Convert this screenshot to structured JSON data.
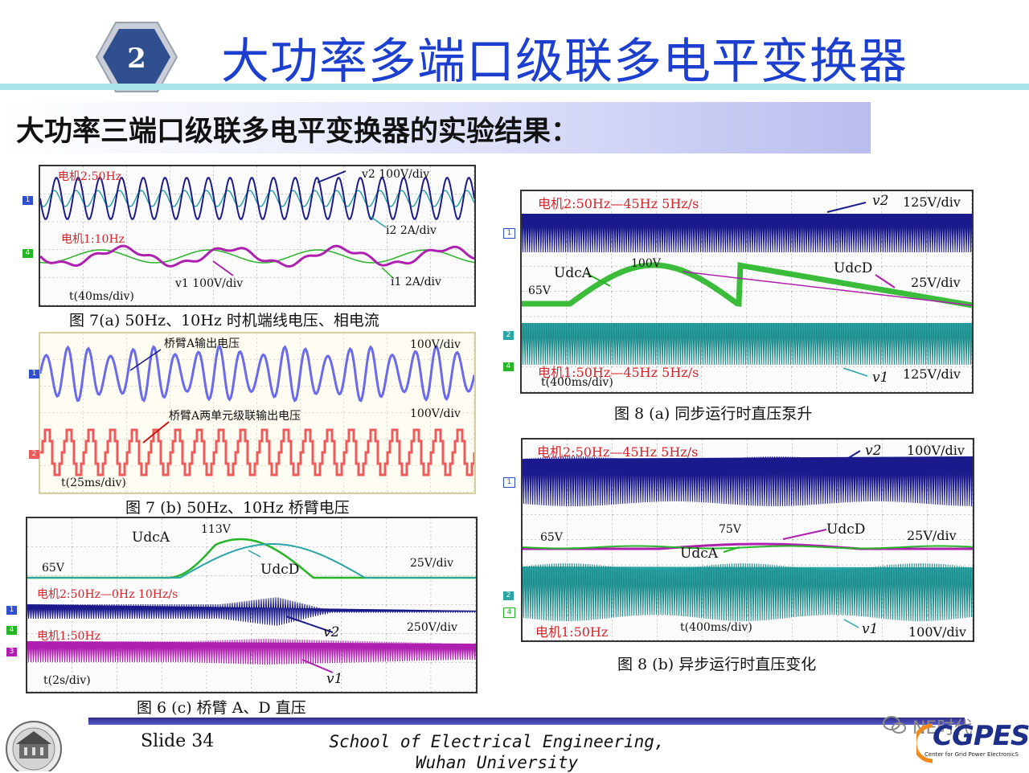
{
  "header": {
    "badge_number": "2",
    "title": "大功率多端口级联多电平变换器"
  },
  "subtitle": "大功率三端口级联多电平变换器的实验结果：",
  "fig7a": {
    "caption": "图 7(a)    50Hz、10Hz 时机端线电压、相电流",
    "motor2": "电机2:50Hz",
    "motor1": "电机1:10Hz",
    "v2": "v2 100V/div",
    "i2": "i2 2A/div",
    "v1": "v1 100V/div",
    "i1": "i1 2A/div",
    "time": "t(40ms/div)"
  },
  "fig7b": {
    "caption": "图 7 (b)    50Hz、10Hz 桥臂电压",
    "label1": "桥臂A输出电压",
    "scale1": "100V/div",
    "label2": "桥臂A两单元级联输出电压",
    "scale2": "100V/div",
    "time": "t(25ms/div)"
  },
  "fig6c": {
    "caption": "图 6 (c)    桥臂 A、D 直压",
    "udca": "UdcA",
    "udcd": "UdcD",
    "v113": "113V",
    "v65": "65V",
    "scale25": "25V/div",
    "motor2": "电机2:50Hz—0Hz  10Hz/s",
    "scale250": "250V/div",
    "v2": "v2",
    "motor1": "电机1:50Hz",
    "v1": "v1",
    "time": "t(2s/div)"
  },
  "fig8a": {
    "caption": "图 8 (a)    同步运行时直压泵升",
    "motor2": "电机2:50Hz—45Hz  5Hz/s",
    "v2": "v2",
    "scale125a": "125V/div",
    "udca": "UdcA",
    "v100": "100V",
    "udcd": "UdcD",
    "v65": "65V",
    "scale25": "25V/div",
    "motor1": "电机1:50Hz—45Hz  5Hz/s",
    "v1": "v1",
    "scale125b": "125V/div",
    "time": "t(400ms/div)"
  },
  "fig8b": {
    "caption": "图 8 (b)    异步运行时直压变化",
    "motor2": "电机2:50Hz—45Hz  5Hz/s",
    "v2": "v2",
    "scale100a": "100V/div",
    "v65": "65V",
    "v75": "75V",
    "udcd": "UdcD",
    "scale25": "25V/div",
    "udca": "UdcA",
    "motor1": "电机1:50Hz",
    "time": "t(400ms/div)",
    "v1": "v1",
    "scale100b": "100V/div"
  },
  "footer": {
    "slide": "Slide 34",
    "school": "School of Electrical Engineering, Wuhan University",
    "watermark": "NE时代",
    "logo": "CGPES",
    "logo_sub": "Center for Grid Power ElectronicS"
  },
  "colors": {
    "title_blue": "#1c3fd0",
    "trace_navy": "#1a1a8c",
    "trace_teal": "#2aa5a5",
    "trace_magenta": "#b020b0",
    "trace_green": "#26b526",
    "trace_lavender": "#6a6aee",
    "trace_salmon": "#ee5a5a"
  }
}
